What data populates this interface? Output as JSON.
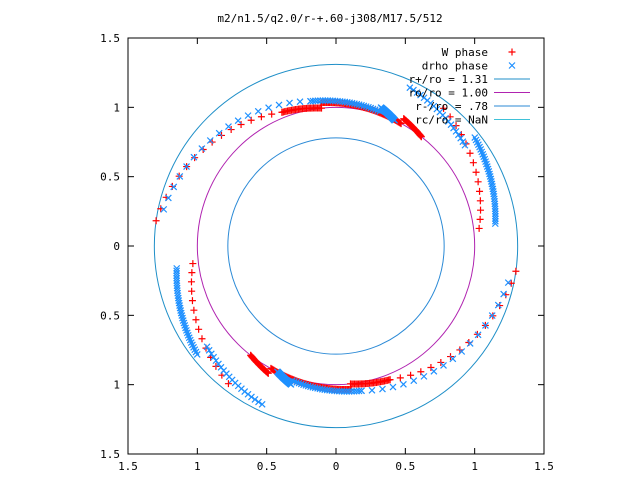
{
  "chart_data": {
    "type": "scatter",
    "title": "m2/n1.5/q2.0/r-+.60-j308/M17.5/512",
    "xlabel": "",
    "ylabel": "",
    "xlim": [
      -1.5,
      1.5
    ],
    "ylim": [
      -1.5,
      1.5
    ],
    "x_ticks": [
      -1.5,
      -1,
      -0.5,
      0,
      0.5,
      1,
      1.5
    ],
    "y_ticks": [
      -1.5,
      -1,
      -0.5,
      0,
      0.5,
      1,
      1.5
    ],
    "x_tick_labels": [
      "1.5",
      "1",
      "0.5",
      "0",
      "0.5",
      "1",
      "1.5"
    ],
    "y_tick_labels": [
      "1.5",
      "1",
      "0.5",
      "0",
      "0.5",
      "1",
      "1.5"
    ],
    "grid": false,
    "legend_position": "top-right",
    "legend": [
      {
        "label": "W phase",
        "kind": "marker",
        "marker": "plus",
        "color": "#ff0000"
      },
      {
        "label": "drho phase",
        "kind": "marker",
        "marker": "cross",
        "color": "#1e90ff"
      },
      {
        "label": "r+/ro = 1.31",
        "kind": "line",
        "color": "#1f8fc8"
      },
      {
        "label": "ro/ro = 1.00",
        "kind": "line",
        "color": "#b023b0"
      },
      {
        "label": "r-/ro = .78",
        "kind": "line",
        "color": "#2b8ad6"
      },
      {
        "label": "rc/ro = NaN",
        "kind": "line",
        "color": "#3fc1d8"
      }
    ],
    "circles": [
      {
        "name": "r+/ro = 1.31",
        "radius": 1.31,
        "color": "#1f8fc8"
      },
      {
        "name": "ro/ro = 1.00",
        "radius": 1.0,
        "color": "#b023b0"
      },
      {
        "name": "r-/ro = .78",
        "radius": 0.78,
        "color": "#2b8ad6"
      }
    ],
    "series": [
      {
        "name": "W phase",
        "color": "#ff0000",
        "arms": [
          {
            "r0": 1.04,
            "r1": 1.26,
            "t0": 7,
            "t1": 52,
            "n": 14
          },
          {
            "r0": 1.0,
            "r1": 1.04,
            "t0": 52,
            "t1": 62,
            "n": 30
          },
          {
            "r0": 1.0,
            "r1": 1.04,
            "t0": 62,
            "t1": 96,
            "n": 70
          },
          {
            "r0": 1.0,
            "r1": 1.04,
            "t0": 96,
            "t1": 112,
            "n": 30
          },
          {
            "r0": 1.04,
            "r1": 1.31,
            "t0": 112,
            "t1": 172,
            "n": 16
          },
          {
            "r0": 1.04,
            "r1": 1.26,
            "t0": 187,
            "t1": 232,
            "n": 14
          },
          {
            "r0": 1.0,
            "r1": 1.04,
            "t0": 232,
            "t1": 242,
            "n": 30
          },
          {
            "r0": 1.0,
            "r1": 1.04,
            "t0": 242,
            "t1": 276,
            "n": 70
          },
          {
            "r0": 1.0,
            "r1": 1.04,
            "t0": 276,
            "t1": 292,
            "n": 30
          },
          {
            "r0": 1.04,
            "r1": 1.31,
            "t0": 292,
            "t1": 352,
            "n": 16
          }
        ]
      },
      {
        "name": "drho phase",
        "color": "#1e90ff",
        "arms": [
          {
            "r0": 1.16,
            "r1": 1.27,
            "t0": 8,
            "t1": 38,
            "n": 36
          },
          {
            "r0": 1.18,
            "r1": 1.26,
            "t0": 38,
            "t1": 65,
            "n": 20
          },
          {
            "r0": 1.0,
            "r1": 1.05,
            "t0": 65,
            "t1": 72,
            "n": 24
          },
          {
            "r0": 1.02,
            "r1": 1.06,
            "t0": 72,
            "t1": 100,
            "n": 30
          },
          {
            "r0": 1.06,
            "r1": 1.27,
            "t0": 100,
            "t1": 168,
            "n": 18
          },
          {
            "r0": 1.16,
            "r1": 1.27,
            "t0": 188,
            "t1": 218,
            "n": 36
          },
          {
            "r0": 1.18,
            "r1": 1.26,
            "t0": 218,
            "t1": 245,
            "n": 20
          },
          {
            "r0": 1.0,
            "r1": 1.05,
            "t0": 245,
            "t1": 252,
            "n": 24
          },
          {
            "r0": 1.02,
            "r1": 1.06,
            "t0": 252,
            "t1": 280,
            "n": 30
          },
          {
            "r0": 1.06,
            "r1": 1.27,
            "t0": 280,
            "t1": 348,
            "n": 18
          }
        ]
      }
    ]
  }
}
